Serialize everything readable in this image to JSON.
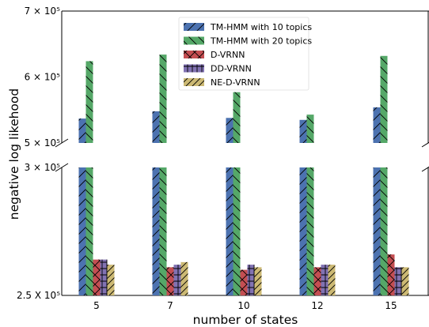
{
  "chart_data": {
    "type": "bar",
    "categories": [
      "5",
      "7",
      "10",
      "12",
      "15"
    ],
    "xlabel": "number of states",
    "ylabel": "negative log likehood",
    "broken_axis": true,
    "upper_ylim": [
      500000,
      700000
    ],
    "lower_ylim": [
      250000,
      300000
    ],
    "upper_ticks": [
      {
        "value": 500000,
        "label": "5 × 10⁵"
      },
      {
        "value": 600000,
        "label": "6 × 10⁵"
      },
      {
        "value": 700000,
        "label": "7 × 10⁵"
      }
    ],
    "lower_ticks": [
      {
        "value": 250000,
        "label": "2.5 X 10⁵"
      },
      {
        "value": 300000,
        "label": "3 × 10⁵"
      }
    ],
    "legend_position": "top-center",
    "series": [
      {
        "name": "TM-HMM with 10 topics",
        "color": "#4c72b0",
        "hatch": "forward-diagonal",
        "values": [
          537000,
          548000,
          538000,
          535000,
          554000
        ]
      },
      {
        "name": "TM-HMM with 20 topics",
        "color": "#55a868",
        "hatch": "back-diagonal",
        "values": [
          624000,
          634000,
          577000,
          543000,
          632000
        ]
      },
      {
        "name": "D-VRNN",
        "color": "#c44e52",
        "hatch": "cross",
        "values": [
          264000,
          261000,
          260000,
          261000,
          266000
        ]
      },
      {
        "name": "DD-VRNN",
        "color": "#8172b2",
        "hatch": "plus",
        "values": [
          264000,
          262000,
          262000,
          262000,
          261000
        ]
      },
      {
        "name": "NE-D-VRNN",
        "color": "#ccb974",
        "hatch": "forward-diagonal-dense",
        "values": [
          262000,
          263000,
          261000,
          262000,
          261000
        ]
      }
    ]
  }
}
